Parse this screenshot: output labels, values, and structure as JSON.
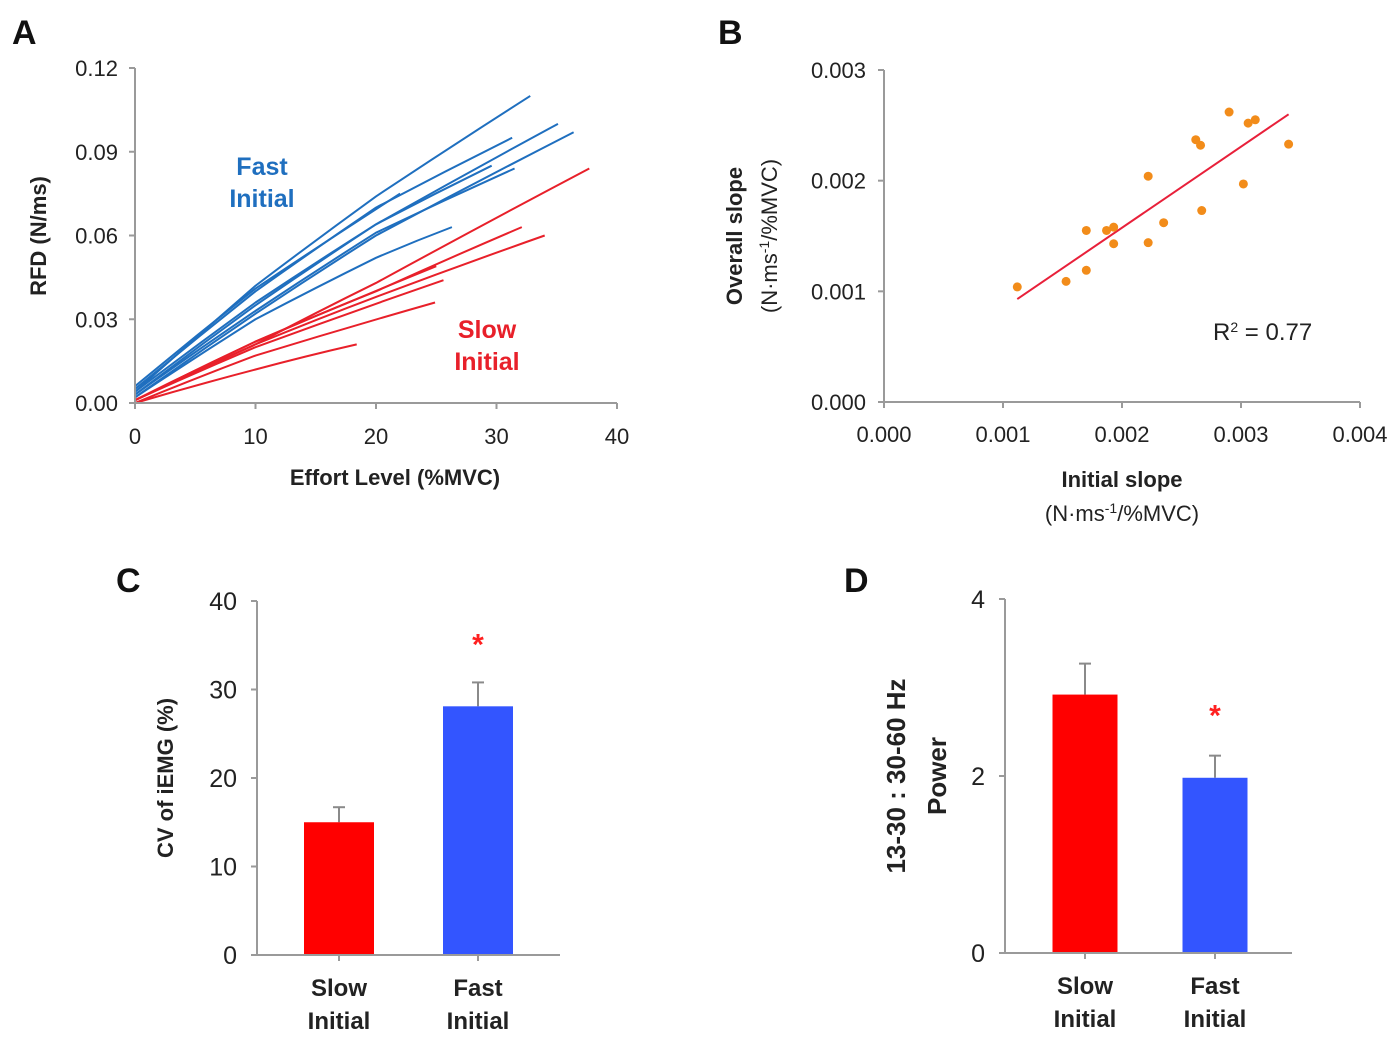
{
  "colors": {
    "fast": "#1f6fbf",
    "slow": "#e8202a",
    "bar_slow": "#ff0000",
    "bar_fast": "#3355ff",
    "scatter_point": "#f28c1a",
    "fit_line": "#e8203a",
    "significance": "#ff2020"
  },
  "chart_data": [
    {
      "panel": "A",
      "type": "line",
      "xlabel": "Effort Level (%MVC)",
      "ylabel": "RFD (N/ms)",
      "xlim": [
        0,
        40
      ],
      "ylim": [
        0,
        0.12
      ],
      "xticks": [
        "0",
        "10",
        "20",
        "30",
        "40"
      ],
      "yticks": [
        "0.00",
        "0.03",
        "0.06",
        "0.09",
        "0.12"
      ],
      "grid": false,
      "annotations": [
        {
          "text": [
            "Fast",
            "Initial"
          ],
          "group": "fast"
        },
        {
          "text": [
            "Slow",
            "Initial"
          ],
          "group": "slow"
        }
      ],
      "series": [
        {
          "name": "fast-1",
          "group": "fast",
          "x": [
            0,
            10,
            20,
            32.8
          ],
          "y": [
            0.004,
            0.042,
            0.074,
            0.11
          ]
        },
        {
          "name": "fast-2",
          "group": "fast",
          "x": [
            0,
            10,
            20,
            31.3
          ],
          "y": [
            0.005,
            0.04,
            0.07,
            0.095
          ]
        },
        {
          "name": "fast-3",
          "group": "fast",
          "x": [
            0,
            10,
            20,
            35.1
          ],
          "y": [
            0.003,
            0.035,
            0.064,
            0.1
          ]
        },
        {
          "name": "fast-4",
          "group": "fast",
          "x": [
            0,
            10,
            20,
            36.4
          ],
          "y": [
            0.002,
            0.032,
            0.06,
            0.097
          ]
        },
        {
          "name": "fast-5",
          "group": "fast",
          "x": [
            0,
            10,
            20,
            29.6
          ],
          "y": [
            0.004,
            0.036,
            0.064,
            0.085
          ]
        },
        {
          "name": "fast-6",
          "group": "fast",
          "x": [
            0,
            10,
            20,
            26.3
          ],
          "y": [
            0.002,
            0.03,
            0.052,
            0.063
          ]
        },
        {
          "name": "fast-7",
          "group": "fast",
          "x": [
            0,
            10,
            22
          ],
          "y": [
            0.006,
            0.041,
            0.075
          ]
        },
        {
          "name": "fast-8",
          "group": "fast",
          "x": [
            0,
            10,
            20,
            31.5
          ],
          "y": [
            0.003,
            0.033,
            0.061,
            0.084
          ]
        },
        {
          "name": "slow-1",
          "group": "slow",
          "x": [
            0,
            10,
            20,
            37.7
          ],
          "y": [
            0.001,
            0.021,
            0.043,
            0.084
          ]
        },
        {
          "name": "slow-2",
          "group": "slow",
          "x": [
            0,
            10,
            20,
            32.1
          ],
          "y": [
            0.001,
            0.022,
            0.04,
            0.063
          ]
        },
        {
          "name": "slow-3",
          "group": "slow",
          "x": [
            0,
            10,
            20,
            34.0
          ],
          "y": [
            0.001,
            0.021,
            0.038,
            0.06
          ]
        },
        {
          "name": "slow-4",
          "group": "slow",
          "x": [
            0,
            10,
            25.0
          ],
          "y": [
            0.001,
            0.022,
            0.049
          ]
        },
        {
          "name": "slow-5",
          "group": "slow",
          "x": [
            0,
            10,
            25.6
          ],
          "y": [
            0.001,
            0.02,
            0.044
          ]
        },
        {
          "name": "slow-6",
          "group": "slow",
          "x": [
            0,
            10,
            24.9
          ],
          "y": [
            0.0,
            0.017,
            0.036
          ]
        },
        {
          "name": "slow-7",
          "group": "slow",
          "x": [
            0,
            10,
            18.4
          ],
          "y": [
            0.0,
            0.012,
            0.021
          ]
        }
      ]
    },
    {
      "panel": "B",
      "type": "scatter",
      "xlabel": "Initial slope",
      "xlabel_units": "(N·ms-1/%MVC)",
      "ylabel": "Overall slope",
      "ylabel_units": "(N·ms-1/%MVC)",
      "xlim": [
        0,
        0.004
      ],
      "ylim": [
        0,
        0.003
      ],
      "xticks": [
        "0.000",
        "0.001",
        "0.002",
        "0.003",
        "0.004"
      ],
      "yticks": [
        "0.000",
        "0.001",
        "0.002",
        "0.003"
      ],
      "grid": false,
      "annotation": "R² = 0.77",
      "points": [
        {
          "x": 0.00112,
          "y": 0.00104
        },
        {
          "x": 0.00153,
          "y": 0.00109
        },
        {
          "x": 0.0017,
          "y": 0.00119
        },
        {
          "x": 0.0017,
          "y": 0.00155
        },
        {
          "x": 0.00187,
          "y": 0.00155
        },
        {
          "x": 0.00193,
          "y": 0.00158
        },
        {
          "x": 0.00193,
          "y": 0.00143
        },
        {
          "x": 0.00222,
          "y": 0.00204
        },
        {
          "x": 0.00222,
          "y": 0.00144
        },
        {
          "x": 0.00235,
          "y": 0.00162
        },
        {
          "x": 0.00262,
          "y": 0.00237
        },
        {
          "x": 0.00266,
          "y": 0.00232
        },
        {
          "x": 0.00267,
          "y": 0.00173
        },
        {
          "x": 0.0029,
          "y": 0.00262
        },
        {
          "x": 0.00302,
          "y": 0.00197
        },
        {
          "x": 0.00306,
          "y": 0.00252
        },
        {
          "x": 0.00312,
          "y": 0.00255
        },
        {
          "x": 0.0034,
          "y": 0.00233
        }
      ],
      "fit": {
        "x": [
          0.00112,
          0.0034
        ],
        "y": [
          0.00093,
          0.0026
        ],
        "r2": 0.77
      }
    },
    {
      "panel": "C",
      "type": "bar",
      "ylabel": "CV of iEMG (%)",
      "ylim": [
        0,
        40
      ],
      "yticks": [
        "0",
        "10",
        "20",
        "30",
        "40"
      ],
      "categories": [
        [
          "Slow",
          "Initial"
        ],
        [
          "Fast",
          "Initial"
        ]
      ],
      "values": [
        15.0,
        28.1
      ],
      "errors": [
        1.7,
        2.7
      ],
      "significance": [
        false,
        true
      ],
      "significance_mark": "*"
    },
    {
      "panel": "D",
      "type": "bar",
      "ylabel": [
        "13-30 : 30-60 Hz",
        "Power"
      ],
      "ylim": [
        0,
        4
      ],
      "yticks": [
        "0",
        "2",
        "4"
      ],
      "categories": [
        [
          "Slow",
          "Initial"
        ],
        [
          "Fast",
          "Initial"
        ]
      ],
      "values": [
        2.92,
        1.98
      ],
      "errors": [
        0.35,
        0.25
      ],
      "significance": [
        false,
        true
      ],
      "significance_mark": "*"
    }
  ]
}
